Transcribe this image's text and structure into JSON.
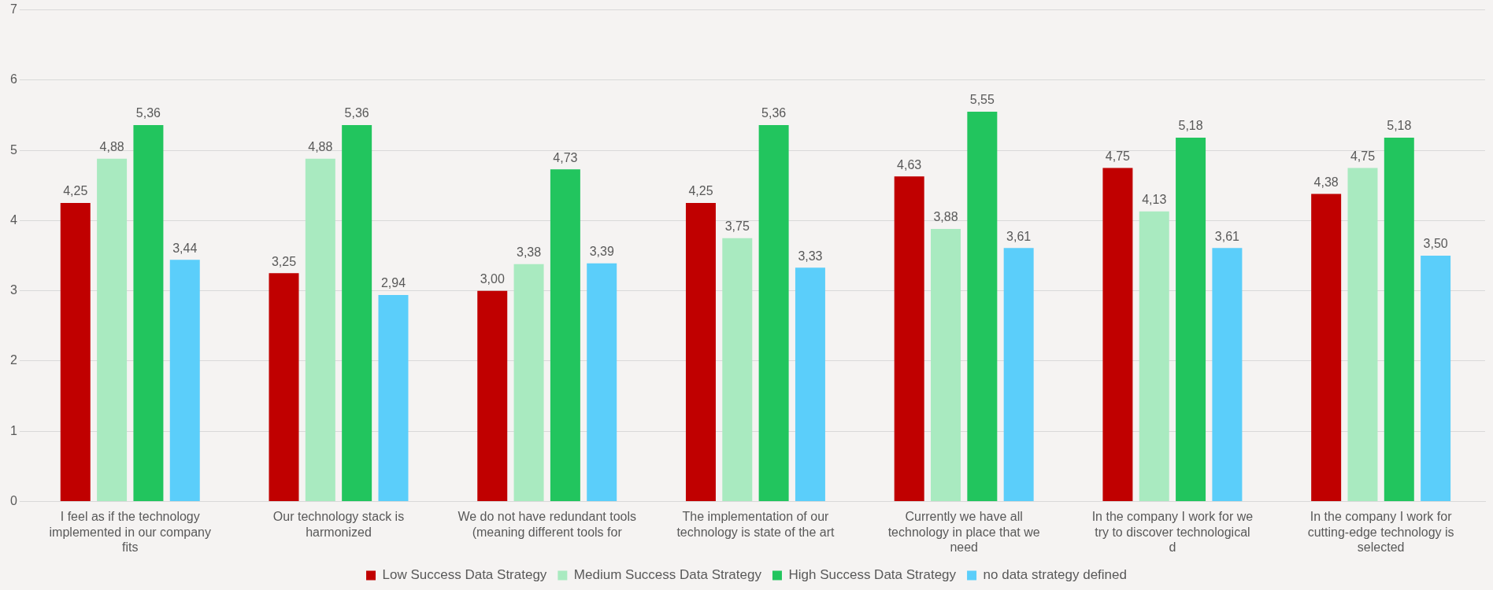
{
  "chart_data": {
    "type": "bar",
    "categories": [
      "I feel as if the technology implemented in our company fits",
      "Our technology stack is harmonized",
      "We do not have redundant tools (meaning different tools for",
      "The implementation of our technology is state of the art",
      "Currently we have all technology in place that we need",
      "In the company I work for we try to discover technological d",
      "In the company I work for cutting-edge technology is selected"
    ],
    "series": [
      {
        "name": "Low Success Data Strategy",
        "color": "#c00000",
        "values": [
          4.25,
          3.25,
          3.0,
          4.25,
          4.63,
          4.75,
          4.38
        ],
        "value_labels": [
          "4,25",
          "3,25",
          "3,00",
          "4,25",
          "4,63",
          "4,75",
          "4,38"
        ]
      },
      {
        "name": "Medium Success Data Strategy",
        "color": "#a9eac0",
        "values": [
          4.88,
          4.88,
          3.38,
          3.75,
          3.88,
          4.13,
          4.75
        ],
        "value_labels": [
          "4,88",
          "4,88",
          "3,38",
          "3,75",
          "3,88",
          "4,13",
          "4,75"
        ]
      },
      {
        "name": "High Success Data Strategy",
        "color": "#22c55e",
        "values": [
          5.36,
          5.36,
          4.73,
          5.36,
          5.55,
          5.18,
          5.18
        ],
        "value_labels": [
          "5,36",
          "5,36",
          "4,73",
          "5,36",
          "5,55",
          "5,18",
          "5,18"
        ]
      },
      {
        "name": "no data strategy defined",
        "color": "#5bcefa",
        "values": [
          3.44,
          2.94,
          3.39,
          3.33,
          3.61,
          3.61,
          3.5
        ],
        "value_labels": [
          "3,44",
          "2,94",
          "3,39",
          "3,33",
          "3,61",
          "3,61",
          "3,50"
        ]
      }
    ],
    "ylim": [
      0,
      7
    ],
    "yticks": [
      0,
      1,
      2,
      3,
      4,
      5,
      6,
      7
    ],
    "grid": "y",
    "legend": "bottom"
  }
}
